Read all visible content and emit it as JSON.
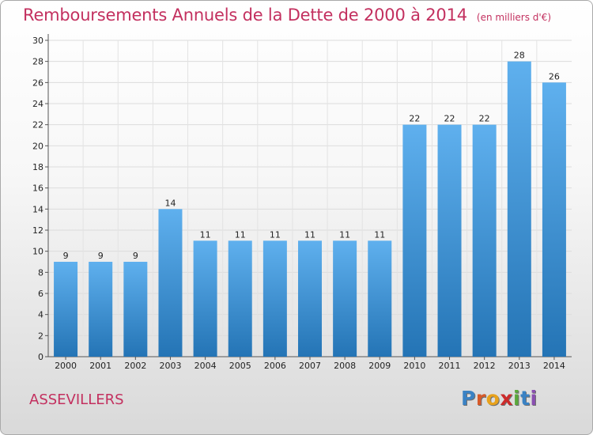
{
  "title": "Remboursements Annuels de la Dette de 2000 à 2014",
  "unit": "(en milliers d'€)",
  "commune": "ASSEVILLERS",
  "logo": {
    "letters": [
      "P",
      "r",
      "o",
      "x",
      "i",
      "t",
      "i"
    ],
    "colors": [
      "#3a82c4",
      "#d65a2a",
      "#e8a21c",
      "#cc2b2b",
      "#5aa83c",
      "#3a82c4",
      "#8a4fb0"
    ]
  },
  "colors": {
    "bar_top": "#5fb0ee",
    "bar_bottom": "#2474b5",
    "title": "#c3305f"
  },
  "chart_data": {
    "type": "bar",
    "title": "Remboursements Annuels de la Dette de 2000 à 2014",
    "categories": [
      "2000",
      "2001",
      "2002",
      "2003",
      "2004",
      "2005",
      "2006",
      "2007",
      "2008",
      "2009",
      "2010",
      "2011",
      "2012",
      "2013",
      "2014"
    ],
    "values": [
      9,
      9,
      9,
      14,
      11,
      11,
      11,
      11,
      11,
      11,
      22,
      22,
      22,
      28,
      26
    ],
    "ylim": [
      0,
      30
    ],
    "yticks": [
      0,
      2,
      4,
      6,
      8,
      10,
      12,
      14,
      16,
      18,
      20,
      22,
      24,
      26,
      28,
      30
    ],
    "grid": true,
    "data_labels": true
  }
}
